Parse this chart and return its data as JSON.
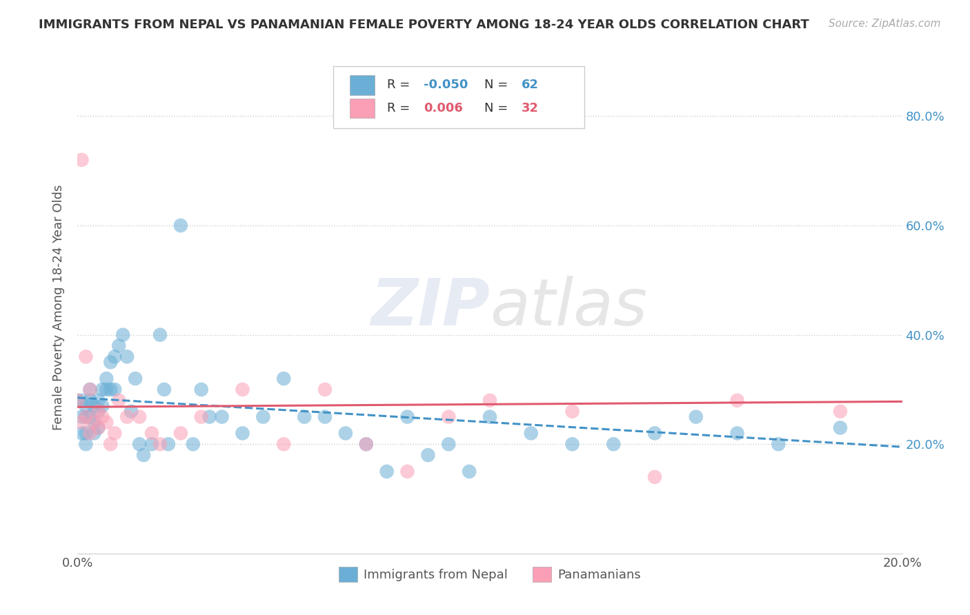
{
  "title": "IMMIGRANTS FROM NEPAL VS PANAMANIAN FEMALE POVERTY AMONG 18-24 YEAR OLDS CORRELATION CHART",
  "source": "Source: ZipAtlas.com",
  "ylabel": "Female Poverty Among 18-24 Year Olds",
  "xlim": [
    0.0,
    0.2
  ],
  "ylim": [
    0.0,
    0.9
  ],
  "legend_r1_label": "R = ",
  "legend_r1_val": "-0.050",
  "legend_n1_label": "N = ",
  "legend_n1_val": "62",
  "legend_r2_label": "R =  ",
  "legend_r2_val": "0.006",
  "legend_n2_label": "N = ",
  "legend_n2_val": "32",
  "color_blue": "#6baed6",
  "color_pink": "#fa9fb5",
  "trend_blue": "#4292c6",
  "trend_pink": "#e05a6e",
  "watermark_zip": "ZIP",
  "watermark_atlas": "atlas",
  "nepal_scatter_x": [
    0.0,
    0.001,
    0.001,
    0.001,
    0.002,
    0.002,
    0.002,
    0.002,
    0.003,
    0.003,
    0.003,
    0.004,
    0.004,
    0.004,
    0.005,
    0.005,
    0.005,
    0.006,
    0.006,
    0.007,
    0.007,
    0.008,
    0.008,
    0.009,
    0.009,
    0.01,
    0.011,
    0.012,
    0.013,
    0.014,
    0.015,
    0.016,
    0.018,
    0.02,
    0.021,
    0.022,
    0.025,
    0.028,
    0.03,
    0.032,
    0.035,
    0.04,
    0.045,
    0.05,
    0.055,
    0.06,
    0.065,
    0.07,
    0.075,
    0.08,
    0.085,
    0.09,
    0.095,
    0.1,
    0.11,
    0.12,
    0.13,
    0.14,
    0.15,
    0.16,
    0.17,
    0.185
  ],
  "nepal_scatter_y": [
    0.28,
    0.28,
    0.25,
    0.22,
    0.27,
    0.25,
    0.22,
    0.2,
    0.3,
    0.28,
    0.25,
    0.27,
    0.24,
    0.22,
    0.28,
    0.26,
    0.23,
    0.3,
    0.27,
    0.32,
    0.3,
    0.35,
    0.3,
    0.36,
    0.3,
    0.38,
    0.4,
    0.36,
    0.26,
    0.32,
    0.2,
    0.18,
    0.2,
    0.4,
    0.3,
    0.2,
    0.6,
    0.2,
    0.3,
    0.25,
    0.25,
    0.22,
    0.25,
    0.32,
    0.25,
    0.25,
    0.22,
    0.2,
    0.15,
    0.25,
    0.18,
    0.2,
    0.15,
    0.25,
    0.22,
    0.2,
    0.2,
    0.22,
    0.25,
    0.22,
    0.2,
    0.23
  ],
  "panama_scatter_x": [
    0.0,
    0.001,
    0.001,
    0.002,
    0.002,
    0.003,
    0.003,
    0.004,
    0.005,
    0.005,
    0.006,
    0.007,
    0.008,
    0.009,
    0.01,
    0.012,
    0.015,
    0.018,
    0.02,
    0.025,
    0.03,
    0.04,
    0.05,
    0.06,
    0.07,
    0.08,
    0.09,
    0.1,
    0.12,
    0.14,
    0.16,
    0.185
  ],
  "panama_scatter_y": [
    0.28,
    0.72,
    0.24,
    0.36,
    0.25,
    0.3,
    0.22,
    0.24,
    0.26,
    0.23,
    0.25,
    0.24,
    0.2,
    0.22,
    0.28,
    0.25,
    0.25,
    0.22,
    0.2,
    0.22,
    0.25,
    0.3,
    0.2,
    0.3,
    0.2,
    0.15,
    0.25,
    0.28,
    0.26,
    0.14,
    0.28,
    0.26
  ],
  "nepal_trend_x": [
    0.0,
    0.2
  ],
  "nepal_trend_y": [
    0.285,
    0.195
  ],
  "panama_trend_x": [
    0.0,
    0.2
  ],
  "panama_trend_y": [
    0.268,
    0.278
  ],
  "background_color": "#ffffff",
  "grid_color": "#cccccc",
  "legend_bottom_1": "Immigrants from Nepal",
  "legend_bottom_2": "Panamanians"
}
